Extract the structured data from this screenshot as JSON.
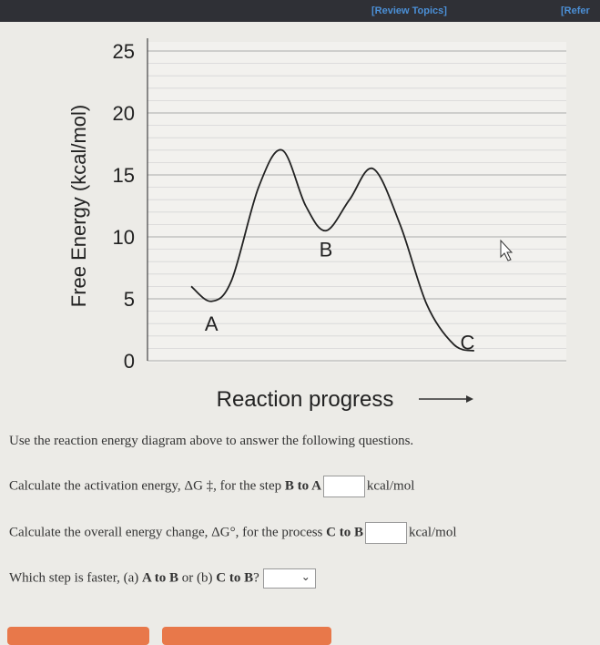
{
  "header": {
    "review_label": "[Review Topics]",
    "ref_label": "[Refer"
  },
  "chart_data": {
    "type": "line",
    "ylabel": "Free Energy (kcal/mol)",
    "xlabel": "Reaction progress",
    "ylim": [
      0,
      25
    ],
    "yticks": [
      "0",
      "5",
      "10",
      "15",
      "20",
      "25"
    ],
    "grid": true,
    "x": [
      0,
      0.06,
      0.12,
      0.2,
      0.27,
      0.34,
      0.4,
      0.47,
      0.54,
      0.62,
      0.7,
      0.78,
      0.84
    ],
    "series": [
      {
        "values": [
          6.0,
          4.8,
          6.5,
          14.0,
          17.0,
          12.5,
          10.5,
          13.0,
          15.5,
          11.0,
          4.5,
          1.3,
          0.8
        ]
      }
    ],
    "annotations": [
      {
        "text": "A",
        "x": 0.06,
        "y": 3.0
      },
      {
        "text": "B",
        "x": 0.4,
        "y": 9.0
      },
      {
        "text": "C",
        "x": 0.82,
        "y": 1.5
      }
    ]
  },
  "questions": {
    "intro": "Use the reaction energy diagram above to answer the following questions.",
    "q1": {
      "prefix": "Calculate the activation energy, ΔG",
      "sym": "‡",
      "mid": ", for the step ",
      "bold": "B to A",
      "unit": "kcal/mol"
    },
    "q2": {
      "prefix": "Calculate the overall energy change, ΔG°, for the process ",
      "bold": "C to B",
      "unit": "kcal/mol"
    },
    "q3": {
      "prefix": "Which step is faster, (a) ",
      "bold_a": "A to B",
      "mid": " or (b) ",
      "bold_b": "C to B",
      "suffix": "?"
    }
  },
  "colors": {
    "accent": "#e8784a",
    "link": "#4b8fd6"
  }
}
